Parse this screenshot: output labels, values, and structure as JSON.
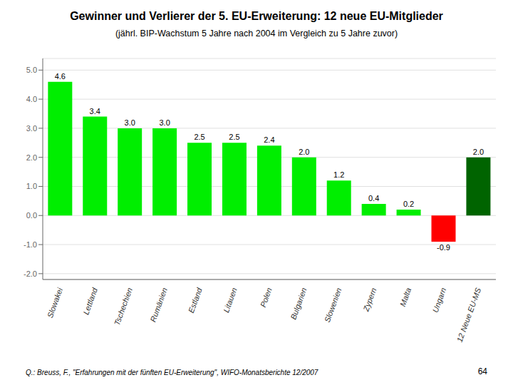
{
  "chart_data": {
    "type": "bar",
    "title": "Gewinner und Verlierer der 5. EU-Erweiterung: 12 neue EU-Mitglieder",
    "subtitle": "(jährl. BIP-Wachstum 5 Jahre nach 2004 im Vergleich zu 5 Jahre zuvor)",
    "categories": [
      "Slowakei",
      "Lettland",
      "Tschechien",
      "Rumänien",
      "Estland",
      "Litauen",
      "Polen",
      "Bulgarien",
      "Slowenien",
      "Zypern",
      "Malta",
      "Ungarn",
      "12 Neue EU-MS"
    ],
    "values": [
      4.6,
      3.4,
      3.0,
      3.0,
      2.5,
      2.5,
      2.4,
      2.0,
      1.2,
      0.4,
      0.2,
      -0.9,
      2.0
    ],
    "value_labels": [
      "4.6",
      "3.4",
      "3.0",
      "3.0",
      "2.5",
      "2.5",
      "2.4",
      "2.0",
      "1.2",
      "0.4",
      "0.2",
      "-0.9",
      "2.0"
    ],
    "data_labels": true,
    "colors": [
      "#00ee00",
      "#00ee00",
      "#00ee00",
      "#00ee00",
      "#00ee00",
      "#00ee00",
      "#00ee00",
      "#00ee00",
      "#00ee00",
      "#00ee00",
      "#00ee00",
      "#ff0000",
      "#006400"
    ],
    "ylim": [
      -2.2,
      5.4
    ],
    "yticks": [
      {
        "value": -2.0,
        "label": "-2.0"
      },
      {
        "value": -1.0,
        "label": "-1.0"
      },
      {
        "value": 0.0,
        "label": "0.0"
      },
      {
        "value": 1.0,
        "label": "1.0"
      },
      {
        "value": 2.0,
        "label": "2.0"
      },
      {
        "value": 3.0,
        "label": "3.0"
      },
      {
        "value": 4.0,
        "label": "4.0"
      },
      {
        "value": 5.0,
        "label": "5.0"
      }
    ],
    "grid": true,
    "annotations": [
      "Q.: Breuss, F., \"Erfahrungen mit der fünften EU-Erweiterung\", WIFO-Monatsberichte 12/2007",
      "64"
    ]
  }
}
